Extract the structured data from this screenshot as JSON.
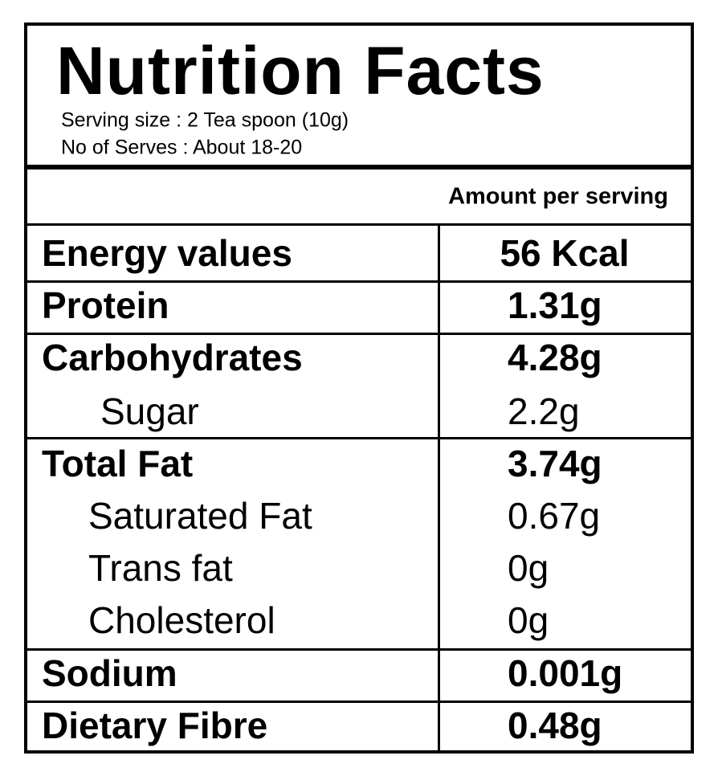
{
  "header": {
    "title": "Nutrition Facts",
    "serving_size": "Serving size : 2 Tea spoon (10g)",
    "serves": "No of Serves : About 18-20"
  },
  "table": {
    "column_header": "Amount per serving",
    "rows": [
      [
        "Energy values",
        "56 Kcal"
      ],
      [
        "Protein",
        "1.31g"
      ],
      [
        "Carbohydrates",
        "4.28g"
      ],
      [
        "Sugar",
        "2.2g"
      ],
      [
        "Total Fat",
        "3.74g"
      ],
      [
        "Saturated Fat",
        "0.67g"
      ],
      [
        "Trans fat",
        "0g"
      ],
      [
        "Cholesterol",
        "0g"
      ],
      [
        "Sodium",
        "0.001g"
      ],
      [
        "Dietary Fibre",
        "0.48g"
      ]
    ]
  }
}
